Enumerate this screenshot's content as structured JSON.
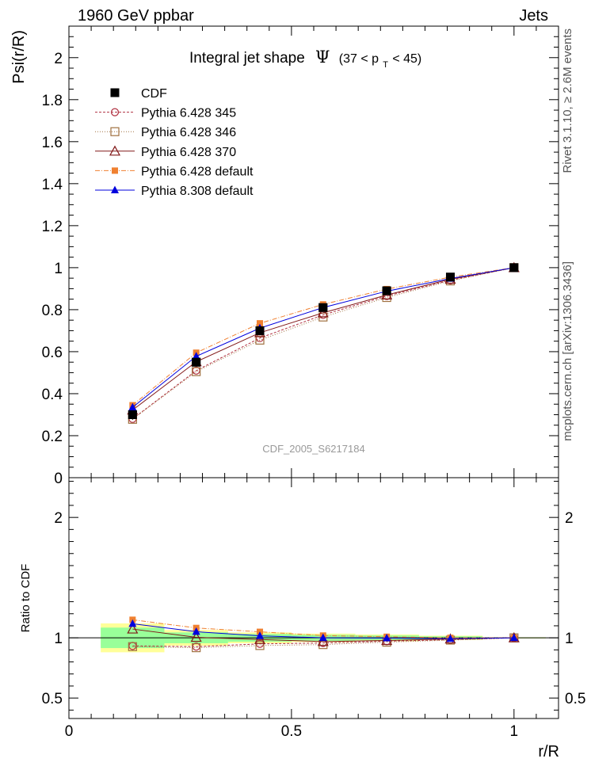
{
  "header": {
    "left": "1960 GeV ppbar",
    "right": "Jets"
  },
  "side_labels": {
    "rivet": "Rivet 3.1.10, ≥ 2.6M events",
    "mcplots": "mcplots.cern.ch [arXiv:1306.3436]"
  },
  "colors": {
    "cdf": "#000000",
    "p345": "#b03040",
    "p346": "#a07040",
    "p370": "#801818",
    "p6def": "#f08030",
    "p8def": "#0000dd",
    "band_inner": "#99ff99",
    "band_outer": "#ffff99"
  },
  "chart_data": [
    {
      "type": "line",
      "title": "Integral jet shape  Ψ (37 < p_T < 45)",
      "title_main": "Integral jet shape",
      "title_psi": "Ψ",
      "title_range_a": "(37 < p",
      "title_range_sub": "T",
      "title_range_b": " < 45)",
      "ylabel": "Psi(r/R)",
      "watermark": "CDF_2005_S6217184",
      "xlim": [
        0,
        1.1
      ],
      "ylim": [
        0,
        2.15
      ],
      "yticks": [
        "0",
        "0.2",
        "0.4",
        "0.6",
        "0.8",
        "1",
        "1.2",
        "1.4",
        "1.6",
        "1.8",
        "2"
      ],
      "legend_position": "top-left",
      "x": [
        0.143,
        0.286,
        0.429,
        0.571,
        0.714,
        0.857,
        1.0
      ],
      "series": [
        {
          "name": "CDF",
          "key": "cdf",
          "marker": "square-filled",
          "values": [
            0.3,
            0.55,
            0.7,
            0.81,
            0.89,
            0.955,
            1.0
          ],
          "errors": [
            0.025,
            0.025,
            0.022,
            0.02,
            0.018,
            0.012,
            0.0
          ]
        },
        {
          "name": "Pythia 6.428 345",
          "key": "p345",
          "marker": "circle-open",
          "dash": "3,2",
          "values": [
            0.28,
            0.51,
            0.665,
            0.775,
            0.865,
            0.94,
            1.0
          ]
        },
        {
          "name": "Pythia 6.428 346",
          "key": "p346",
          "marker": "square-open",
          "dash": "1,2",
          "values": [
            0.278,
            0.505,
            0.655,
            0.765,
            0.858,
            0.937,
            1.0
          ]
        },
        {
          "name": "Pythia 6.428 370",
          "key": "p370",
          "marker": "triangle-open",
          "dash": "",
          "values": [
            0.322,
            0.552,
            0.69,
            0.785,
            0.87,
            0.945,
            1.0
          ]
        },
        {
          "name": "Pythia 6.428 default",
          "key": "p6def",
          "marker": "square-filled-small",
          "dash": "6,2,1,2",
          "values": [
            0.345,
            0.595,
            0.735,
            0.825,
            0.898,
            0.955,
            1.0
          ]
        },
        {
          "name": "Pythia 8.308 default",
          "key": "p8def",
          "marker": "triangle-filled",
          "dash": "",
          "values": [
            0.335,
            0.578,
            0.712,
            0.81,
            0.888,
            0.948,
            1.0
          ]
        }
      ]
    },
    {
      "type": "line",
      "ylabel": "Ratio to CDF",
      "xlabel": "r/R",
      "xlim": [
        0,
        1.1
      ],
      "ylim": [
        0.33,
        2.33
      ],
      "xticks": [
        "0",
        "0.5",
        "1"
      ],
      "yticks": [
        "0.5",
        "1",
        "2"
      ],
      "x": [
        0.143,
        0.286,
        0.429,
        0.571,
        0.714,
        0.857,
        1.0
      ],
      "x_bin_edges": [
        0.0715,
        0.2145,
        0.3575,
        0.5005,
        0.6435,
        0.7865,
        0.9295,
        1.0715
      ],
      "band_inner": [
        0.085,
        0.045,
        0.032,
        0.025,
        0.02,
        0.013,
        0.003
      ],
      "band_outer": [
        0.12,
        0.065,
        0.045,
        0.035,
        0.028,
        0.018,
        0.005
      ],
      "series": [
        {
          "name": "Pythia 6.428 345",
          "key": "p345",
          "values": [
            0.933,
            0.927,
            0.95,
            0.957,
            0.972,
            0.984,
            1.0
          ]
        },
        {
          "name": "Pythia 6.428 346",
          "key": "p346",
          "values": [
            0.927,
            0.918,
            0.936,
            0.944,
            0.964,
            0.981,
            1.0
          ]
        },
        {
          "name": "Pythia 6.428 370",
          "key": "p370",
          "values": [
            1.073,
            1.004,
            0.986,
            0.969,
            0.978,
            0.99,
            1.0
          ]
        },
        {
          "name": "Pythia 6.428 default",
          "key": "p6def",
          "values": [
            1.15,
            1.082,
            1.05,
            1.019,
            1.009,
            1.0,
            1.0
          ]
        },
        {
          "name": "Pythia 8.308 default",
          "key": "p8def",
          "values": [
            1.117,
            1.051,
            1.017,
            1.0,
            0.998,
            0.993,
            1.0
          ]
        }
      ]
    }
  ]
}
